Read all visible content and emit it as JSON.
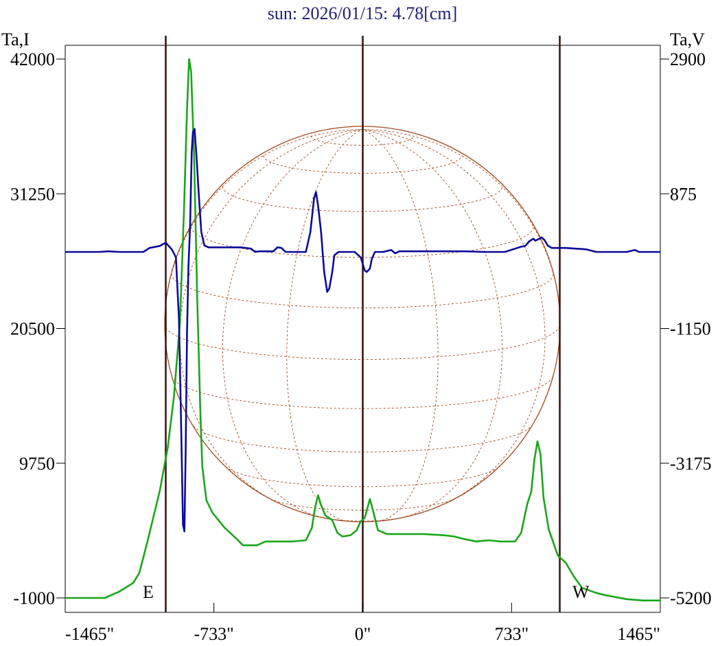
{
  "chart_data": {
    "type": "line",
    "title": "sun: 2026/01/15: 4.78[cm]",
    "left_axis": {
      "label": "Ta,I",
      "ticks": [
        "42000",
        "31250",
        "20500",
        "9750",
        "-1000"
      ],
      "ylim": [
        -1000,
        42000
      ]
    },
    "right_axis": {
      "label": "Ta,V",
      "ticks": [
        "2900",
        "875",
        "-1150",
        "-3175",
        "-5200"
      ],
      "ylim": [
        -5200,
        2900
      ]
    },
    "x_axis": {
      "ticks": [
        "-1465\"",
        "-733\"",
        "0\"",
        "733\"",
        "1465\""
      ],
      "xlim": [
        -1465,
        1465
      ]
    },
    "limb_labels": {
      "east": "E",
      "west": "W"
    },
    "vertical_lines_x": [
      -970,
      0,
      970
    ],
    "series": [
      {
        "key": "I",
        "axis": "left",
        "color": "#1aa51a",
        "points": [
          [
            -1465,
            -1000
          ],
          [
            -1270,
            -1000
          ],
          [
            -1200,
            -500
          ],
          [
            -1130,
            200
          ],
          [
            -1100,
            1000
          ],
          [
            -1060,
            3500
          ],
          [
            -1000,
            7500
          ],
          [
            -960,
            11000
          ],
          [
            -930,
            15000
          ],
          [
            -900,
            21000
          ],
          [
            -880,
            30000
          ],
          [
            -865,
            38000
          ],
          [
            -855,
            42000
          ],
          [
            -845,
            41000
          ],
          [
            -830,
            34000
          ],
          [
            -815,
            23000
          ],
          [
            -800,
            14000
          ],
          [
            -790,
            9500
          ],
          [
            -770,
            6800
          ],
          [
            -740,
            5800
          ],
          [
            -680,
            4600
          ],
          [
            -620,
            3700
          ],
          [
            -590,
            3200
          ],
          [
            -520,
            3200
          ],
          [
            -480,
            3500
          ],
          [
            -350,
            3500
          ],
          [
            -280,
            3600
          ],
          [
            -250,
            4600
          ],
          [
            -235,
            6200
          ],
          [
            -220,
            7200
          ],
          [
            -205,
            6400
          ],
          [
            -185,
            5600
          ],
          [
            -150,
            5200
          ],
          [
            -125,
            4200
          ],
          [
            -100,
            3900
          ],
          [
            -60,
            4000
          ],
          [
            -30,
            4400
          ],
          [
            -10,
            5100
          ],
          [
            10,
            5400
          ],
          [
            35,
            6900
          ],
          [
            50,
            6000
          ],
          [
            75,
            4400
          ],
          [
            120,
            4100
          ],
          [
            200,
            4100
          ],
          [
            300,
            4100
          ],
          [
            400,
            4000
          ],
          [
            450,
            3900
          ],
          [
            500,
            3700
          ],
          [
            560,
            3500
          ],
          [
            620,
            3600
          ],
          [
            680,
            3500
          ],
          [
            750,
            3500
          ],
          [
            780,
            4200
          ],
          [
            810,
            6500
          ],
          [
            830,
            7500
          ],
          [
            845,
            10000
          ],
          [
            860,
            11500
          ],
          [
            875,
            10500
          ],
          [
            890,
            7000
          ],
          [
            915,
            4500
          ],
          [
            960,
            2400
          ],
          [
            1000,
            1800
          ],
          [
            1040,
            700
          ],
          [
            1080,
            -200
          ],
          [
            1150,
            -600
          ],
          [
            1200,
            -800
          ],
          [
            1300,
            -1100
          ],
          [
            1380,
            -1200
          ],
          [
            1465,
            -1200
          ]
        ]
      },
      {
        "key": "V",
        "axis": "right",
        "color": "#0a0a9a",
        "points": [
          [
            -1465,
            0
          ],
          [
            -1300,
            0
          ],
          [
            -1250,
            10
          ],
          [
            -1200,
            0
          ],
          [
            -1080,
            0
          ],
          [
            -1050,
            60
          ],
          [
            -1000,
            90
          ],
          [
            -970,
            140
          ],
          [
            -940,
            40
          ],
          [
            -920,
            -80
          ],
          [
            -905,
            -1000
          ],
          [
            -895,
            -2500
          ],
          [
            -885,
            -4100
          ],
          [
            -878,
            -4200
          ],
          [
            -872,
            -3000
          ],
          [
            -865,
            -1200
          ],
          [
            -858,
            -200
          ],
          [
            -850,
            400
          ],
          [
            -842,
            1500
          ],
          [
            -836,
            1800
          ],
          [
            -828,
            1850
          ],
          [
            -818,
            1400
          ],
          [
            -808,
            900
          ],
          [
            -795,
            300
          ],
          [
            -780,
            100
          ],
          [
            -760,
            70
          ],
          [
            -700,
            70
          ],
          [
            -600,
            70
          ],
          [
            -550,
            50
          ],
          [
            -530,
            0
          ],
          [
            -510,
            10
          ],
          [
            -440,
            10
          ],
          [
            -420,
            70
          ],
          [
            -400,
            60
          ],
          [
            -380,
            0
          ],
          [
            -320,
            0
          ],
          [
            -280,
            0
          ],
          [
            -258,
            300
          ],
          [
            -240,
            800
          ],
          [
            -230,
            900
          ],
          [
            -220,
            700
          ],
          [
            -205,
            300
          ],
          [
            -190,
            -300
          ],
          [
            -175,
            -600
          ],
          [
            -165,
            -550
          ],
          [
            -150,
            -300
          ],
          [
            -140,
            -50
          ],
          [
            -120,
            0
          ],
          [
            -40,
            0
          ],
          [
            -10,
            -80
          ],
          [
            10,
            -280
          ],
          [
            20,
            -300
          ],
          [
            35,
            -250
          ],
          [
            45,
            -100
          ],
          [
            60,
            0
          ],
          [
            100,
            0
          ],
          [
            140,
            30
          ],
          [
            160,
            -20
          ],
          [
            180,
            10
          ],
          [
            300,
            10
          ],
          [
            500,
            10
          ],
          [
            600,
            0
          ],
          [
            700,
            0
          ],
          [
            780,
            80
          ],
          [
            800,
            90
          ],
          [
            820,
            160
          ],
          [
            840,
            200
          ],
          [
            850,
            170
          ],
          [
            870,
            200
          ],
          [
            880,
            220
          ],
          [
            895,
            180
          ],
          [
            910,
            100
          ],
          [
            930,
            60
          ],
          [
            1000,
            60
          ],
          [
            1100,
            40
          ],
          [
            1150,
            0
          ],
          [
            1300,
            0
          ],
          [
            1340,
            30
          ],
          [
            1360,
            0
          ],
          [
            1465,
            0
          ]
        ]
      }
    ]
  },
  "colors": {
    "limb_line": "#3a1a14",
    "globe": "#a0481a",
    "frame": "#000000"
  }
}
